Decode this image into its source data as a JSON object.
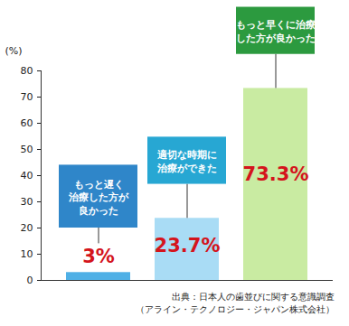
{
  "chart_data": {
    "type": "bar",
    "categories": [
      "もっと遅く\n治療した方が\n良かった",
      "適切な時期に\n治療ができた",
      "もっと早くに治療\nした方が良かった"
    ],
    "values": [
      3,
      23.7,
      73.3
    ],
    "value_labels": [
      "3%",
      "23.7%",
      "73.3%"
    ],
    "colors": [
      "#4fb0e6",
      "#a9dcf5",
      "#c9eba2"
    ],
    "y_label": "(%)",
    "ylim": [
      0,
      80
    ],
    "yticks": [
      0,
      10,
      20,
      30,
      40,
      50,
      60,
      70,
      80
    ],
    "grid": false,
    "data_labels": true,
    "annotations": [
      "出典：日本人の歯並びに関する意識調査",
      "（アライン・テクノロジー・ジャパン株式会社）"
    ]
  }
}
